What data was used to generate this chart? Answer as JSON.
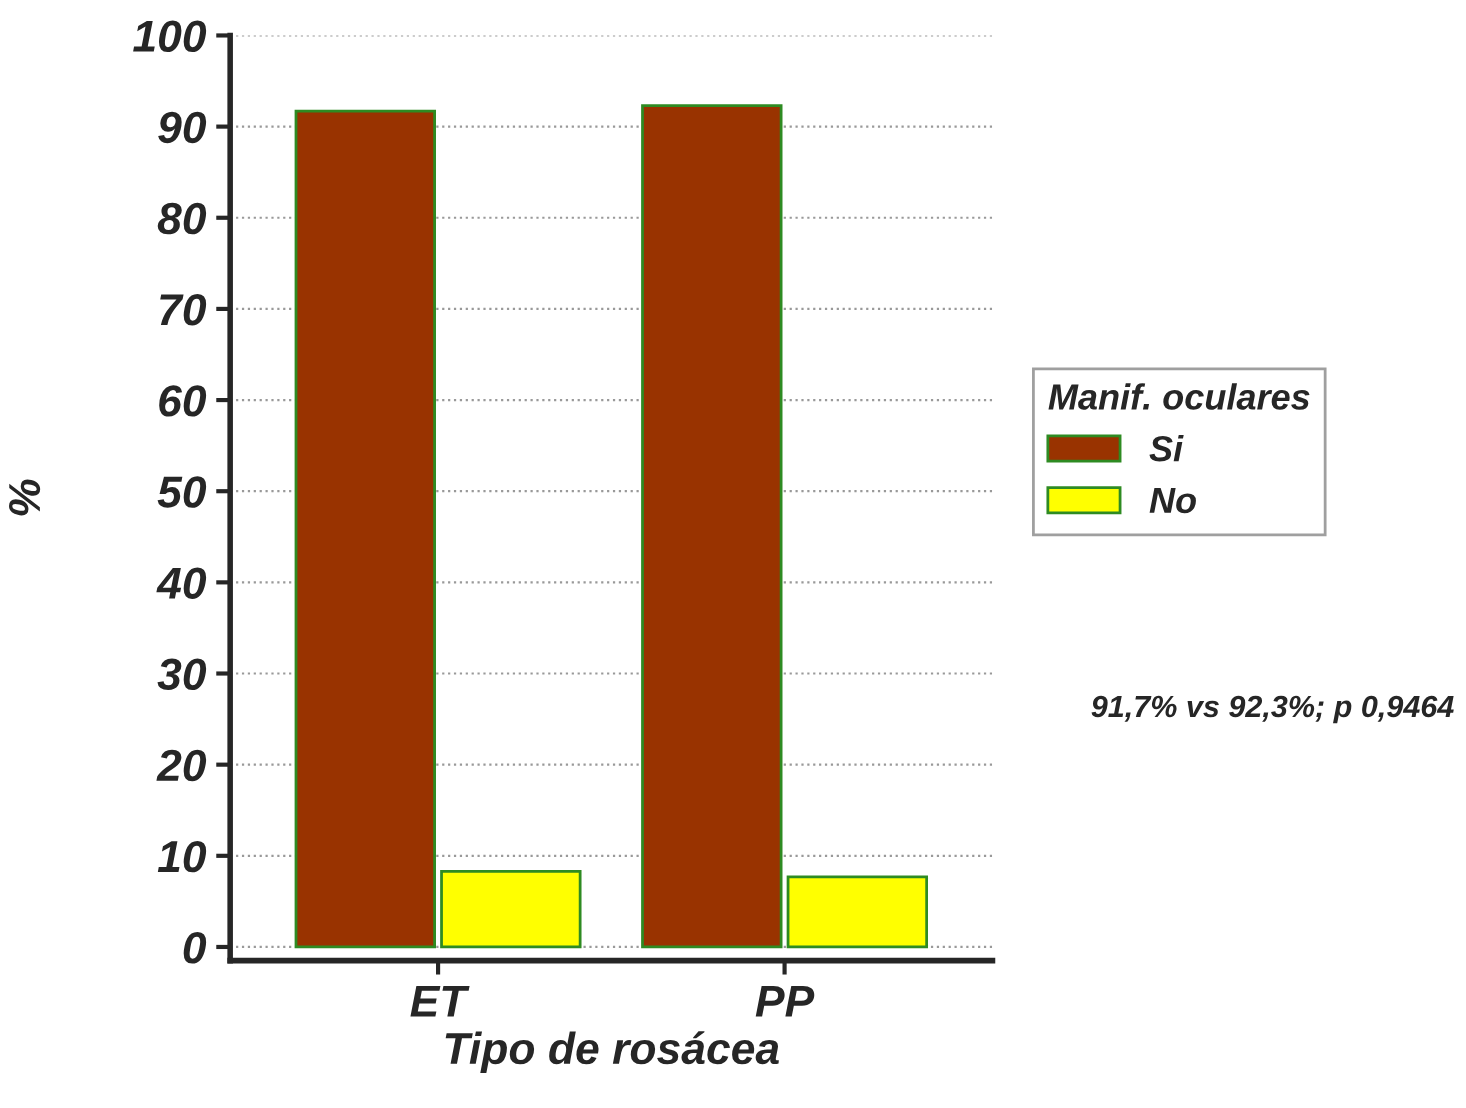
{
  "chart_data": {
    "type": "bar",
    "xlabel": "Tipo de rosácea",
    "ylabel": "%",
    "legend_title": "Manif. oculares",
    "categories": [
      "ET",
      "PP"
    ],
    "series": [
      {
        "name": "Si",
        "color": "#993300",
        "values": [
          91.7,
          92.3
        ]
      },
      {
        "name": "No",
        "color": "#ffff00",
        "values": [
          8.3,
          7.7
        ]
      }
    ],
    "ylim": [
      -1.5,
      100
    ],
    "yticks": [
      0,
      10,
      20,
      30,
      40,
      50,
      60,
      70,
      80,
      90,
      100
    ],
    "grid": "y",
    "legend": "right",
    "annotations": [
      "91,7% vs 92,3%; p 0,9464"
    ]
  }
}
